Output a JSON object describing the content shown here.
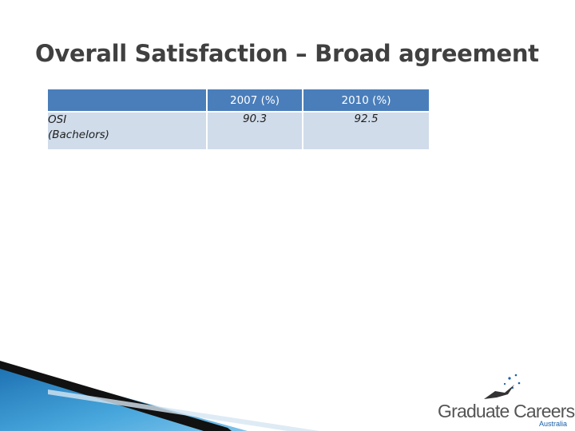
{
  "slide": {
    "title": "Overall Satisfaction – Broad agreement"
  },
  "table": {
    "headers": [
      "",
      "2007 (%)",
      "2010 (%)"
    ],
    "rows": [
      {
        "label_line1": "OSI",
        "label_line2": "(Bachelors)",
        "v2007": "90.3",
        "v2010": "92.5"
      }
    ]
  },
  "logo": {
    "name": "Graduate Careers",
    "sub": "Australia"
  },
  "colors": {
    "header_bg": "#4a7ebb",
    "cell_bg": "#d0dcea",
    "title": "#404040",
    "wedge_blue": "#2f8fcf"
  }
}
